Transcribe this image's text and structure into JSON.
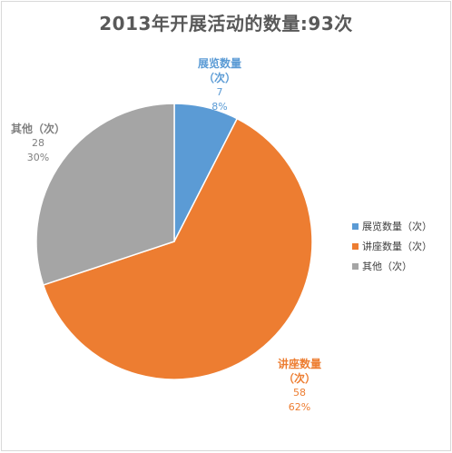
{
  "chart_data": {
    "type": "pie",
    "title": "2013年开展活动的数量:93次",
    "categories": [
      "展览数量（次）",
      "讲座数量（次）",
      "其他（次）"
    ],
    "values": [
      7,
      58,
      28
    ],
    "percent_labels": [
      "8%",
      "62%",
      "30%"
    ],
    "data_label_names": [
      "展览数量\n（次）",
      "讲座数量\n（次）",
      "其他（次）"
    ],
    "colors": [
      "#5b9bd5",
      "#ed7d31",
      "#a5a5a5"
    ],
    "legend_position": "right",
    "start_angle_deg": 0,
    "direction": "clockwise"
  }
}
